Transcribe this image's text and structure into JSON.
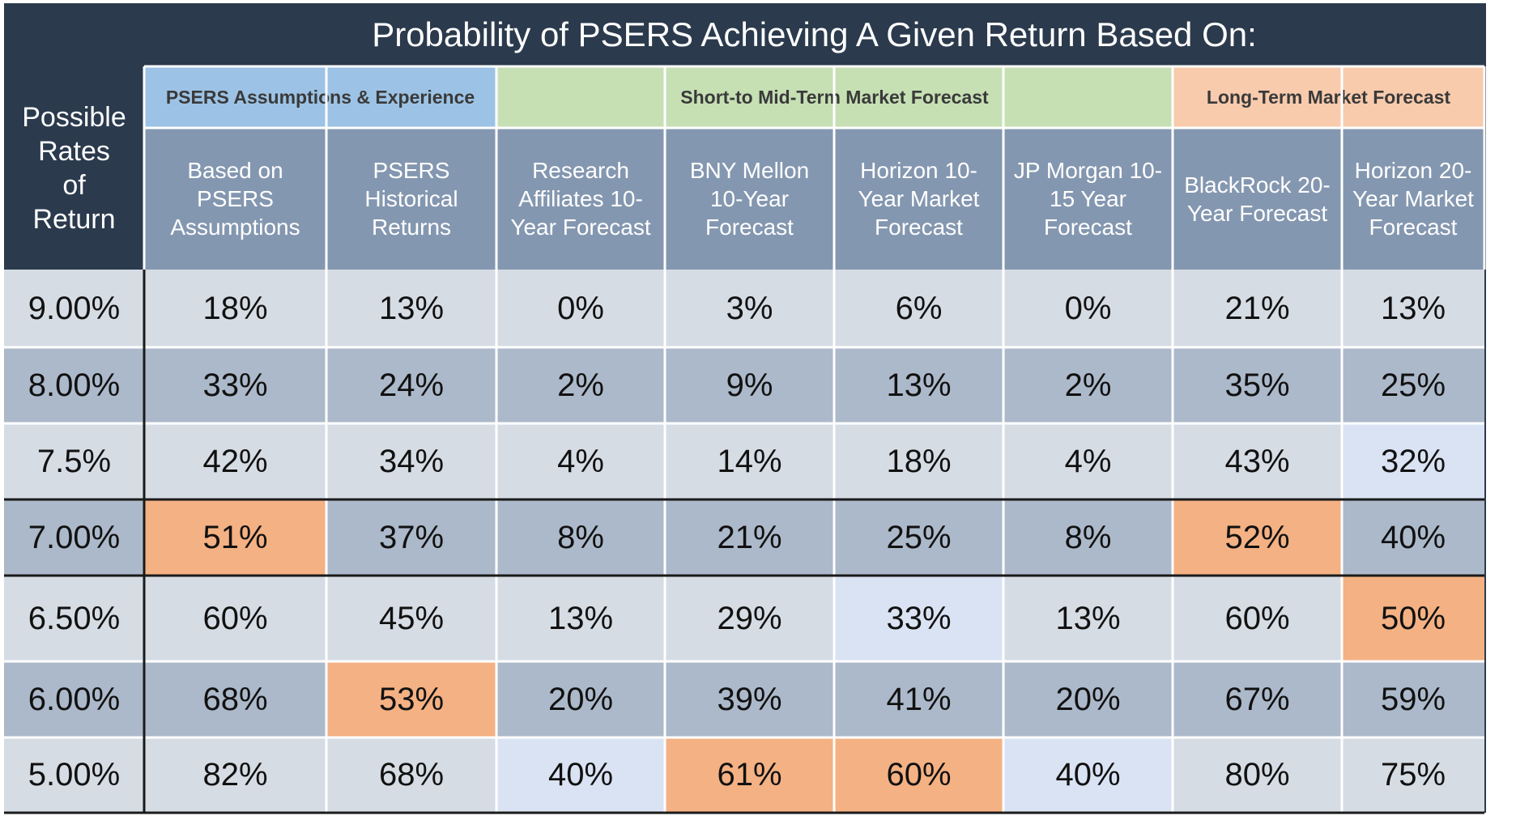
{
  "chart_data": {
    "type": "table",
    "title": "Probability of PSERS Achieving A Given Return Based On:",
    "row_header_label": "Possible\nRates\nof\nReturn",
    "column_groups": [
      {
        "label": "PSERS Assumptions & Experience",
        "span": 2,
        "color": "#9cc3e5"
      },
      {
        "label": "Short-to Mid-Term Market Forecast",
        "span": 4,
        "color": "#c6e0b4"
      },
      {
        "label": "Long-Term Market Forecast",
        "span": 2,
        "color": "#f8cbad"
      }
    ],
    "columns": [
      "Based on PSERS Assumptions",
      "PSERS Historical Returns",
      "Research Affiliates 10-Year Forecast",
      "BNY Mellon 10-Year Forecast",
      "Horizon 10-Year Market Forecast",
      "JP Morgan 10-15 Year Forecast",
      "BlackRock 20-Year Forecast",
      "Horizon 20-Year Market Forecast"
    ],
    "rows": [
      {
        "rate": "9.00%",
        "values": [
          "18%",
          "13%",
          "0%",
          "3%",
          "6%",
          "0%",
          "21%",
          "13%"
        ]
      },
      {
        "rate": "8.00%",
        "values": [
          "33%",
          "24%",
          "2%",
          "9%",
          "13%",
          "2%",
          "35%",
          "25%"
        ]
      },
      {
        "rate": "7.5%",
        "values": [
          "42%",
          "34%",
          "4%",
          "14%",
          "18%",
          "4%",
          "43%",
          "32%"
        ]
      },
      {
        "rate": "7.00%",
        "values": [
          "51%",
          "37%",
          "8%",
          "21%",
          "25%",
          "8%",
          "52%",
          "40%"
        ]
      },
      {
        "rate": "6.50%",
        "values": [
          "60%",
          "45%",
          "13%",
          "29%",
          "33%",
          "13%",
          "60%",
          "50%"
        ]
      },
      {
        "rate": "6.00%",
        "values": [
          "68%",
          "53%",
          "20%",
          "39%",
          "41%",
          "20%",
          "67%",
          "59%"
        ]
      },
      {
        "rate": "5.00%",
        "values": [
          "82%",
          "68%",
          "40%",
          "61%",
          "60%",
          "40%",
          "80%",
          "75%"
        ]
      }
    ],
    "highlighted_cells": [
      [
        3,
        0
      ],
      [
        3,
        6
      ],
      [
        4,
        7
      ],
      [
        5,
        1
      ],
      [
        6,
        3
      ],
      [
        6,
        4
      ]
    ],
    "colors": {
      "frame": "#2b3a4d",
      "header_cell": "#8497b0",
      "row_light": "#d6dce4",
      "row_dark": "#acb9ca",
      "row_pale": "#dae3f3",
      "highlight": "#f4b183"
    }
  }
}
